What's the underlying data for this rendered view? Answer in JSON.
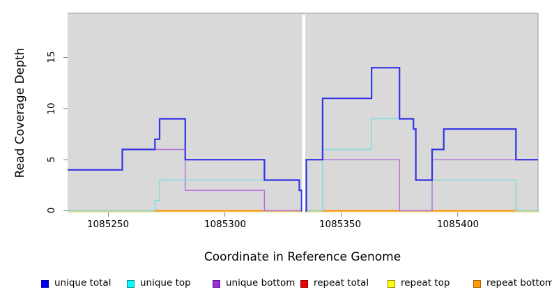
{
  "chart_data": {
    "type": "line",
    "subtype": "step-coverage",
    "title": "",
    "xlabel": "Coordinate in Reference Genome",
    "ylabel": "Read Coverage Depth",
    "xlim": [
      1085232,
      1085435
    ],
    "ylim": [
      0,
      19
    ],
    "x_ticks": [
      "1085250",
      "1085300",
      "1085350",
      "1085400"
    ],
    "y_ticks": [
      "0",
      "5",
      "10",
      "15"
    ],
    "x_tick_values": [
      1085250,
      1085300,
      1085350,
      1085400
    ],
    "y_tick_values": [
      0,
      5,
      10,
      15
    ],
    "grid": false,
    "plot_background": "#D9D9D9",
    "gap_region": {
      "start": 1085333,
      "end": 1085335,
      "color": "#FFFFFF"
    },
    "x_end": 1085434.5,
    "series": [
      {
        "name": "repeat total",
        "line_color": "#DD0000",
        "steps": [
          [
            1085232.5,
            0
          ]
        ]
      },
      {
        "name": "repeat top",
        "line_color": "#EDEDA6",
        "steps": [
          [
            1085232.5,
            0
          ]
        ]
      },
      {
        "name": "repeat bottom",
        "line_color": "#FF8C00",
        "steps": [
          [
            1085232.5,
            0
          ]
        ]
      },
      {
        "name": "unique bottom",
        "line_color": "#B26EDC",
        "steps": [
          [
            1085232.5,
            4
          ],
          [
            1085256,
            6
          ],
          [
            1085283,
            2
          ],
          [
            1085317,
            0
          ],
          [
            1085335,
            5
          ],
          [
            1085375,
            0
          ],
          [
            1085389,
            5
          ]
        ]
      },
      {
        "name": "unique top",
        "line_color": "#7EDFDB",
        "steps": [
          [
            1085232.5,
            0
          ],
          [
            1085270,
            1
          ],
          [
            1085272,
            3
          ],
          [
            1085332,
            2
          ],
          [
            1085333,
            0
          ],
          [
            1085342,
            6
          ],
          [
            1085363,
            9
          ],
          [
            1085381,
            8
          ],
          [
            1085382,
            3
          ],
          [
            1085425,
            0
          ]
        ]
      },
      {
        "name": "unique total",
        "line_color": "#3333E6",
        "steps": [
          [
            1085232.5,
            4
          ],
          [
            1085256,
            6
          ],
          [
            1085270,
            7
          ],
          [
            1085272,
            9
          ],
          [
            1085283,
            5
          ],
          [
            1085317,
            3
          ],
          [
            1085332,
            2
          ],
          [
            1085333,
            0
          ],
          [
            1085335,
            5
          ],
          [
            1085342,
            11
          ],
          [
            1085363,
            14
          ],
          [
            1085375,
            9
          ],
          [
            1085381,
            8
          ],
          [
            1085382,
            3
          ],
          [
            1085389,
            6
          ],
          [
            1085394,
            8
          ],
          [
            1085425,
            5
          ]
        ]
      }
    ],
    "legend": [
      {
        "label": "unique total",
        "color": "#0000EE",
        "border": "#0000A8"
      },
      {
        "label": "unique top",
        "color": "#00FFFF",
        "border": "#008B8B"
      },
      {
        "label": "unique bottom",
        "color": "#9B30D9",
        "border": "#5E1B86"
      },
      {
        "label": "repeat total",
        "color": "#EE0000",
        "border": "#8B0000"
      },
      {
        "label": "repeat top",
        "color": "#FFFF00",
        "border": "#8F8F00"
      },
      {
        "label": "repeat bottom",
        "color": "#FF9900",
        "border": "#A85E00"
      }
    ],
    "legend_position": "bottom"
  },
  "colors": {
    "figure_bg": "#FFFFFF",
    "plot_bg": "#D9D9D9",
    "plot_edge": "#B5B5B5",
    "tick": "#808080",
    "text": "#000000"
  }
}
